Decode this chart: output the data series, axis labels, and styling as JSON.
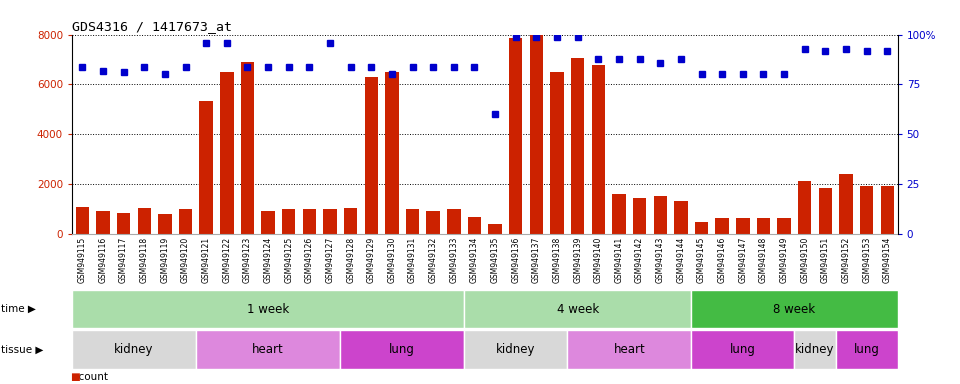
{
  "title": "GDS4316 / 1417673_at",
  "samples": [
    "GSM949115",
    "GSM949116",
    "GSM949117",
    "GSM949118",
    "GSM949119",
    "GSM949120",
    "GSM949121",
    "GSM949122",
    "GSM949123",
    "GSM949124",
    "GSM949125",
    "GSM949126",
    "GSM949127",
    "GSM949128",
    "GSM949129",
    "GSM949130",
    "GSM949131",
    "GSM949132",
    "GSM949133",
    "GSM949134",
    "GSM949135",
    "GSM949136",
    "GSM949137",
    "GSM949138",
    "GSM949139",
    "GSM949140",
    "GSM949141",
    "GSM949142",
    "GSM949143",
    "GSM949144",
    "GSM949145",
    "GSM949146",
    "GSM949147",
    "GSM949148",
    "GSM949149",
    "GSM949150",
    "GSM949151",
    "GSM949152",
    "GSM949153",
    "GSM949154"
  ],
  "counts": [
    1100,
    950,
    850,
    1050,
    800,
    1000,
    5350,
    6500,
    6900,
    950,
    1000,
    1000,
    1000,
    1050,
    6300,
    6500,
    1000,
    950,
    1000,
    700,
    400,
    7850,
    8050,
    6500,
    7050,
    6800,
    1600,
    1450,
    1550,
    1350,
    500,
    650,
    650,
    650,
    650,
    2150,
    1850,
    2400,
    1950,
    1950
  ],
  "percentile_ranks": [
    84,
    82,
    81,
    84,
    80,
    84,
    96,
    96,
    84,
    84,
    84,
    84,
    96,
    84,
    84,
    80,
    84,
    84,
    84,
    84,
    60,
    99,
    99,
    99,
    99,
    88,
    88,
    88,
    86,
    88,
    80,
    80,
    80,
    80,
    80,
    93,
    92,
    93,
    92,
    92
  ],
  "ylim_left": [
    0,
    8000
  ],
  "ylim_right": [
    0,
    100
  ],
  "yticks_left": [
    0,
    2000,
    4000,
    6000,
    8000
  ],
  "yticks_right": [
    0,
    25,
    50,
    75,
    100
  ],
  "bar_color": "#cc2200",
  "dot_color": "#0000cc",
  "background_color": "#ffffff",
  "time_groups": [
    {
      "label": "1 week",
      "start": 0,
      "end": 19,
      "color": "#aaddaa"
    },
    {
      "label": "4 week",
      "start": 19,
      "end": 30,
      "color": "#aaddaa"
    },
    {
      "label": "8 week",
      "start": 30,
      "end": 40,
      "color": "#44bb44"
    }
  ],
  "tissue_groups": [
    {
      "label": "kidney",
      "start": 0,
      "end": 6,
      "color": "#d8d8d8"
    },
    {
      "label": "heart",
      "start": 6,
      "end": 13,
      "color": "#dd88dd"
    },
    {
      "label": "lung",
      "start": 13,
      "end": 19,
      "color": "#cc44cc"
    },
    {
      "label": "kidney",
      "start": 19,
      "end": 24,
      "color": "#d8d8d8"
    },
    {
      "label": "heart",
      "start": 24,
      "end": 30,
      "color": "#dd88dd"
    },
    {
      "label": "lung",
      "start": 30,
      "end": 35,
      "color": "#cc44cc"
    },
    {
      "label": "kidney",
      "start": 35,
      "end": 37,
      "color": "#d8d8d8"
    },
    {
      "label": "lung",
      "start": 37,
      "end": 40,
      "color": "#cc44cc"
    }
  ],
  "xtick_bg_color": "#d8d8d8"
}
